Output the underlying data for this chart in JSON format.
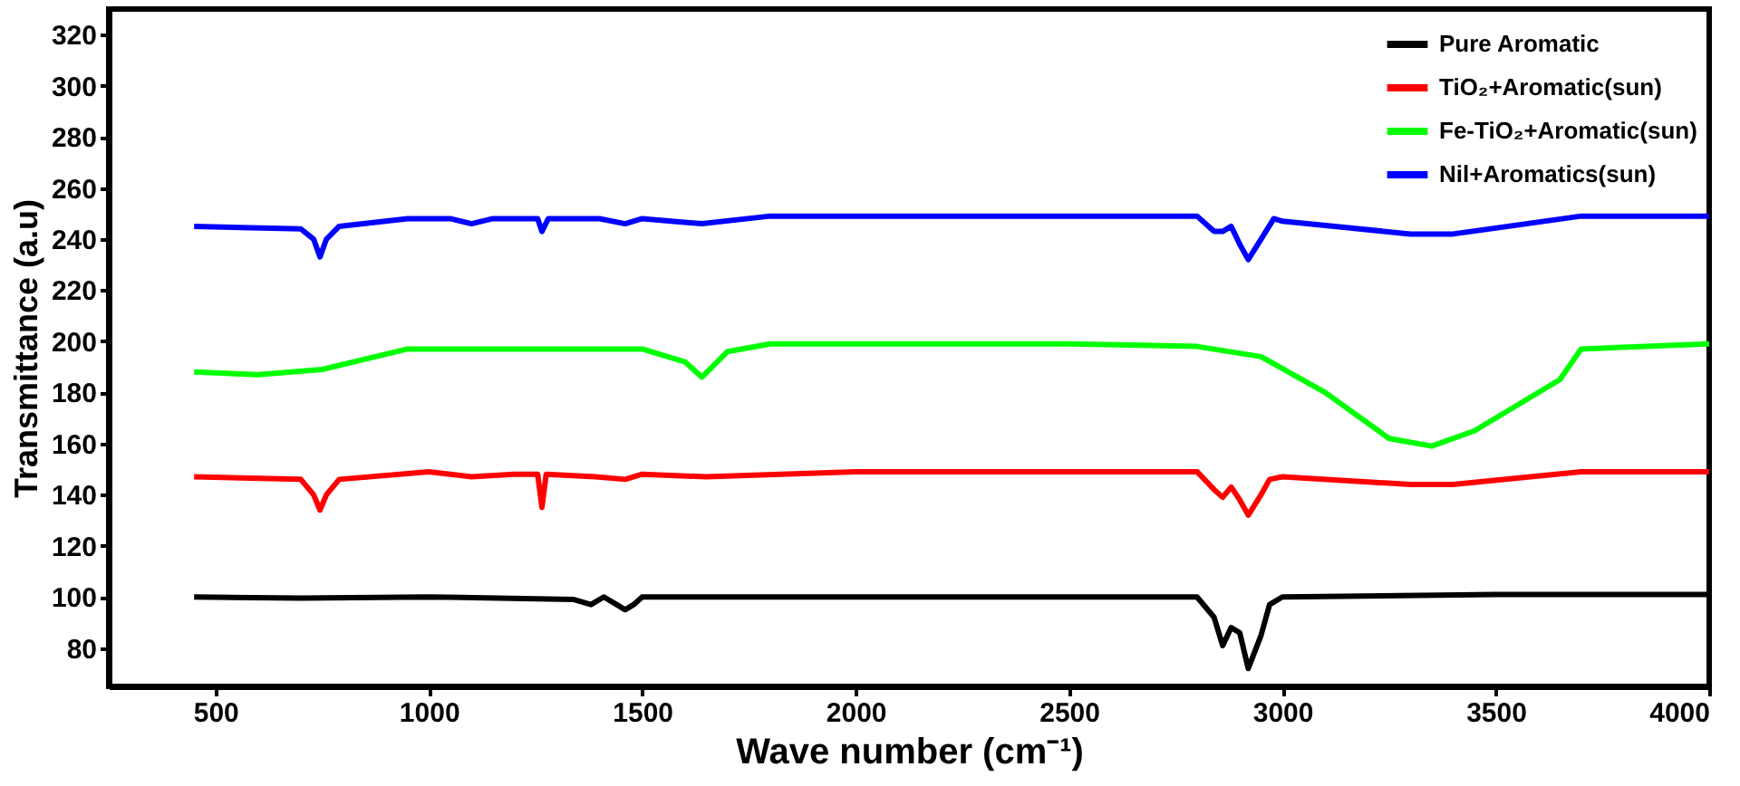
{
  "chart_data": {
    "type": "line",
    "xlabel": "Wave number (cm⁻¹)",
    "ylabel": "Transmittance (a.u)",
    "xlim": [
      250,
      4000
    ],
    "ylim": [
      65,
      330
    ],
    "xticks": [
      500,
      1000,
      1500,
      2000,
      2500,
      3000,
      3500,
      4000
    ],
    "yticks": [
      80,
      100,
      120,
      140,
      160,
      180,
      200,
      220,
      240,
      260,
      280,
      300,
      320
    ],
    "grid": false,
    "legend": "top right",
    "line_style": "solid",
    "marker": "none",
    "series": [
      {
        "name": "Pure Aromatic",
        "color": "#000000",
        "x": [
          450,
          700,
          1000,
          1340,
          1380,
          1410,
          1440,
          1460,
          1480,
          1500,
          2000,
          2800,
          2840,
          2860,
          2880,
          2900,
          2920,
          2950,
          2970,
          3000,
          3500,
          4000
        ],
        "values": [
          100,
          99.5,
          100,
          99,
          97,
          100,
          97,
          95,
          97,
          100,
          100,
          100,
          92,
          81,
          88,
          86,
          72,
          85,
          97,
          100,
          101,
          101
        ]
      },
      {
        "name": "TiO₂+Aromatic(sun)",
        "color": "#ff0000",
        "x": [
          450,
          700,
          730,
          745,
          760,
          790,
          1000,
          1100,
          1200,
          1255,
          1265,
          1275,
          1390,
          1460,
          1500,
          1650,
          2000,
          2800,
          2840,
          2860,
          2880,
          2900,
          2920,
          2950,
          2970,
          3000,
          3300,
          3400,
          3700,
          4000
        ],
        "values": [
          147,
          146,
          140,
          134,
          140,
          146,
          149,
          147,
          148,
          148,
          135,
          148,
          147,
          146,
          148,
          147,
          149,
          149,
          142,
          139,
          143,
          138,
          132,
          140,
          146,
          147,
          144,
          144,
          149,
          149
        ]
      },
      {
        "name": "Fe-TiO₂+Aromatic(sun)",
        "color": "#00ff00",
        "x": [
          450,
          600,
          750,
          950,
          1500,
          1600,
          1640,
          1700,
          1800,
          2500,
          2800,
          2950,
          3100,
          3250,
          3350,
          3450,
          3650,
          3700,
          4000
        ],
        "values": [
          188,
          187,
          189,
          197,
          197,
          192,
          186,
          196,
          199,
          199,
          198,
          194,
          180,
          162,
          159,
          165,
          185,
          197,
          199
        ]
      },
      {
        "name": "Nil+Aromatics(sun)",
        "color": "#0000ff",
        "x": [
          450,
          700,
          730,
          745,
          760,
          790,
          950,
          1050,
          1100,
          1150,
          1255,
          1265,
          1280,
          1400,
          1460,
          1500,
          1640,
          1800,
          2800,
          2840,
          2860,
          2880,
          2900,
          2920,
          2950,
          2980,
          3000,
          3300,
          3400,
          3700,
          4000
        ],
        "values": [
          245,
          244,
          240,
          233,
          240,
          245,
          248,
          248,
          246,
          248,
          248,
          243,
          248,
          248,
          246,
          248,
          246,
          249,
          249,
          243,
          243,
          245,
          238,
          232,
          240,
          248,
          247,
          242,
          242,
          249,
          249
        ]
      }
    ]
  }
}
